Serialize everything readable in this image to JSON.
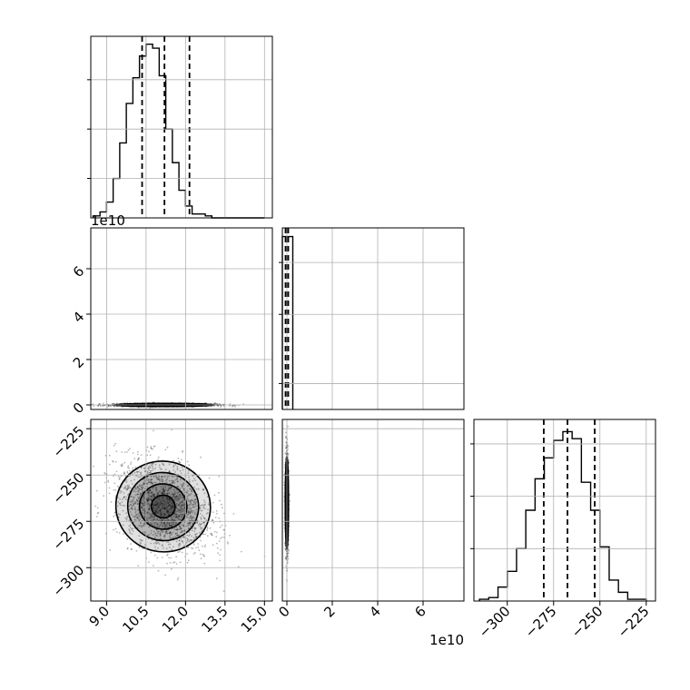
{
  "chart_data": {
    "type": "corner",
    "colors": {
      "line": "#000000",
      "grid": "#b0b0b0",
      "frame": "#000000",
      "density": "#000000"
    },
    "params": [
      {
        "range": [
          8.4,
          15.3
        ],
        "ticks": [
          9.0,
          10.5,
          12.0,
          13.5,
          15.0
        ],
        "tick_labels": [
          "9.0",
          "10.5",
          "12.0",
          "13.5",
          "15.0"
        ]
      },
      {
        "range": [
          -0.2,
          7.8
        ],
        "ticks": [
          0,
          2,
          4,
          6
        ],
        "tick_labels": [
          "0",
          "2",
          "4",
          "6"
        ],
        "offset_label": "1e10"
      },
      {
        "range": [
          -318,
          -220
        ],
        "ticks": [
          -300,
          -275,
          -250,
          -225
        ],
        "tick_labels": [
          "−300",
          "−275",
          "−250",
          "−225"
        ]
      }
    ],
    "histograms": [
      {
        "param": 0,
        "bin_edges": [
          8.5,
          8.75,
          9.0,
          9.25,
          9.5,
          9.75,
          10.0,
          10.25,
          10.5,
          10.75,
          11.0,
          11.25,
          11.5,
          11.75,
          12.0,
          12.25,
          12.5,
          12.75,
          13.0,
          13.25,
          13.5,
          13.75,
          14.0,
          14.25,
          14.5,
          14.75,
          15.0
        ],
        "counts": [
          1,
          3,
          8,
          20,
          38,
          58,
          71,
          82,
          88,
          86,
          72,
          45,
          28,
          14,
          6,
          2,
          2,
          1,
          0,
          0,
          0,
          0,
          0,
          0,
          0,
          0
        ],
        "quantiles": [
          10.35,
          11.2,
          12.15
        ],
        "ylim": [
          0,
          92
        ],
        "yticks": [
          20,
          45,
          70
        ]
      },
      {
        "param": 1,
        "bin_edges": [
          -0.2,
          0.03,
          0.26
        ],
        "counts": [
          1,
          1
        ],
        "quantiles": [
          -0.06,
          0.0,
          0.06
        ],
        "ylim": [
          0,
          1.05
        ],
        "yticks": [
          0.15,
          0.55,
          0.85
        ]
      },
      {
        "param": 2,
        "bin_edges": [
          -315,
          -310,
          -305,
          -300,
          -295,
          -290,
          -285,
          -280,
          -275,
          -270,
          -265,
          -260,
          -255,
          -250,
          -245,
          -240,
          -235,
          -230,
          -225
        ],
        "counts": [
          1,
          2,
          8,
          17,
          30,
          52,
          70,
          82,
          92,
          97,
          93,
          68,
          52,
          31,
          12,
          5,
          1,
          1
        ],
        "quantiles": [
          -280.3,
          -267.5,
          -252.8
        ],
        "ylim": [
          0,
          104
        ],
        "yticks": [
          30,
          60,
          90
        ]
      }
    ],
    "pairs": [
      {
        "x_param": 0,
        "y_param": 1,
        "center": [
          11.2,
          0.0
        ],
        "spread": [
          0.95,
          0.035
        ],
        "contour_levels_sigma": [
          0.5,
          1.0,
          1.5,
          2.0
        ]
      },
      {
        "x_param": 0,
        "y_param": 2,
        "center": [
          11.15,
          -267
        ],
        "spread": [
          0.9,
          12.5
        ],
        "correlation": -0.3,
        "contour_levels_sigma": [
          0.5,
          1.0,
          1.5,
          2.0
        ]
      },
      {
        "x_param": 1,
        "y_param": 2,
        "center": [
          0.0,
          -265
        ],
        "spread": [
          0.035,
          12.5
        ],
        "contour_levels_sigma": [
          0.5,
          1.0,
          1.5,
          2.0
        ]
      }
    ]
  }
}
